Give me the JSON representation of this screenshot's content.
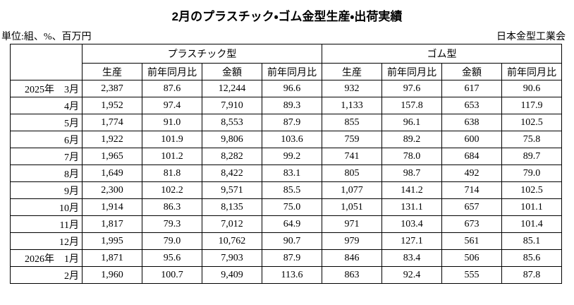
{
  "header": {
    "title": "2月のプラスチック・ゴム金型生産・出荷実績",
    "unit": "単位:組、%、百万円",
    "source": "日本金型工業会"
  },
  "table": {
    "groups": [
      "プラスチック型",
      "ゴム型"
    ],
    "columns": [
      "生産",
      "前年同月比",
      "金額",
      "前年同月比",
      "生産",
      "前年同月比",
      "金額",
      "前年同月比"
    ],
    "rows": [
      [
        "2025年　3月",
        "2,387",
        "87.6",
        "12,244",
        "96.6",
        "932",
        "97.6",
        "617",
        "90.6"
      ],
      [
        "4月",
        "1,952",
        "97.4",
        "7,910",
        "89.3",
        "1,133",
        "157.8",
        "653",
        "117.9"
      ],
      [
        "5月",
        "1,774",
        "91.0",
        "8,553",
        "87.9",
        "855",
        "96.1",
        "638",
        "102.5"
      ],
      [
        "6月",
        "1,922",
        "101.9",
        "9,806",
        "103.6",
        "759",
        "89.2",
        "600",
        "75.8"
      ],
      [
        "7月",
        "1,965",
        "101.2",
        "8,282",
        "99.2",
        "741",
        "78.0",
        "684",
        "89.7"
      ],
      [
        "8月",
        "1,649",
        "81.8",
        "8,422",
        "83.1",
        "805",
        "98.7",
        "492",
        "79.0"
      ],
      [
        "9月",
        "2,300",
        "102.2",
        "9,571",
        "85.5",
        "1,077",
        "141.2",
        "714",
        "102.5"
      ],
      [
        "10月",
        "1,914",
        "86.3",
        "8,135",
        "75.0",
        "1,051",
        "131.1",
        "657",
        "101.1"
      ],
      [
        "11月",
        "1,817",
        "79.3",
        "7,012",
        "64.9",
        "971",
        "103.4",
        "673",
        "101.4"
      ],
      [
        "12月",
        "1,995",
        "79.0",
        "10,762",
        "90.7",
        "979",
        "127.1",
        "561",
        "85.1"
      ],
      [
        "2026年　1月",
        "1,871",
        "95.6",
        "7,903",
        "87.9",
        "846",
        "83.4",
        "506",
        "85.6"
      ],
      [
        "2月",
        "1,960",
        "100.7",
        "9,409",
        "113.6",
        "863",
        "92.4",
        "555",
        "87.8"
      ]
    ]
  }
}
